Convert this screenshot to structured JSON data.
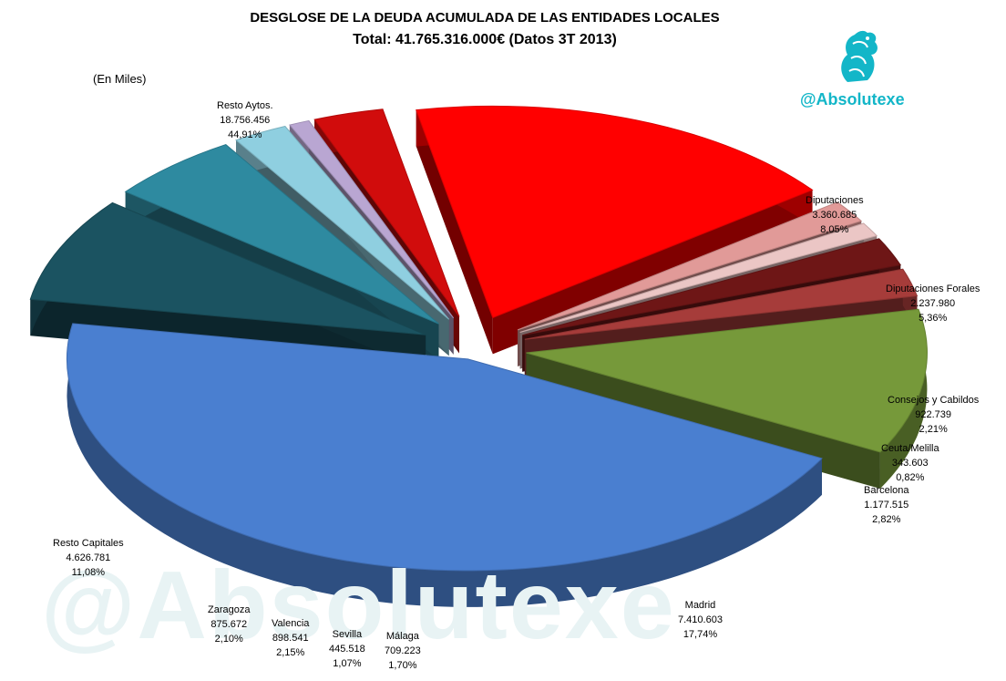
{
  "header": {
    "title": "DESGLOSE DE LA DEUDA ACUMULADA DE LAS ENTIDADES LOCALES",
    "subtitle": "Total: 41.765.316.000€ (Datos 3T 2013)",
    "units": "(En Miles)"
  },
  "brand": {
    "handle": "@Absolutexe",
    "watermark": "@Absolutexe",
    "color": "#13b6c8"
  },
  "chart_data": {
    "type": "pie",
    "title": "DESGLOSE DE LA DEUDA ACUMULADA DE LAS ENTIDADES LOCALES",
    "subtitle": "Total: 41.765.316.000€ (Datos 3T 2013)",
    "unit_note": "(En Miles)",
    "slices": [
      {
        "label": "Resto Aytos.",
        "value": 18756456,
        "value_text": "18.756.456",
        "pct": 44.91,
        "pct_text": "44,91%",
        "color": "#4a7fd0"
      },
      {
        "label": "Diputaciones",
        "value": 3360685,
        "value_text": "3.360.685",
        "pct": 8.05,
        "pct_text": "8,05%",
        "color": "#1b5361"
      },
      {
        "label": "Diputaciones Forales",
        "value": 2237980,
        "value_text": "2.237.980",
        "pct": 5.36,
        "pct_text": "5,36%",
        "color": "#2e8aa0"
      },
      {
        "label": "Consejos y Cabildos",
        "value": 922739,
        "value_text": "922.739",
        "pct": 2.21,
        "pct_text": "2,21%",
        "color": "#8fcfe0"
      },
      {
        "label": "Ceuta/Melilla",
        "value": 343603,
        "value_text": "343.603",
        "pct": 0.82,
        "pct_text": "0,82%",
        "color": "#b9a6d2"
      },
      {
        "label": "Barcelona",
        "value": 1177515,
        "value_text": "1.177.515",
        "pct": 2.82,
        "pct_text": "2,82%",
        "color": "#d10c0c"
      },
      {
        "label": "Madrid",
        "value": 7410603,
        "value_text": "7.410.603",
        "pct": 17.74,
        "pct_text": "17,74%",
        "color": "#ff0000"
      },
      {
        "label": "Málaga",
        "value": 709223,
        "value_text": "709.223",
        "pct": 1.7,
        "pct_text": "1,70%",
        "color": "#e19a98"
      },
      {
        "label": "Sevilla",
        "value": 445518,
        "value_text": "445.518",
        "pct": 1.07,
        "pct_text": "1,07%",
        "color": "#ebc6c5"
      },
      {
        "label": "Valencia",
        "value": 898541,
        "value_text": "898.541",
        "pct": 2.15,
        "pct_text": "2,15%",
        "color": "#6e1616"
      },
      {
        "label": "Zaragoza",
        "value": 875672,
        "value_text": "875.672",
        "pct": 2.1,
        "pct_text": "2,10%",
        "color": "#a63c3a"
      },
      {
        "label": "Resto Capitales",
        "value": 4626781,
        "value_text": "4.626.781",
        "pct": 11.08,
        "pct_text": "11,08%",
        "color": "#76993a"
      }
    ]
  }
}
